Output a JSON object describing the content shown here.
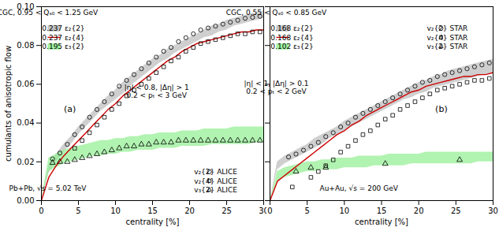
{
  "chart_data": [
    {
      "type": "line",
      "xlabel": "centrality [%]",
      "ylabel": "cumulants of anisotropic flow",
      "xlim": [
        0,
        30
      ],
      "ylim": [
        0.0,
        0.1
      ],
      "xticks": [
        0,
        5,
        10,
        15,
        20,
        25,
        30
      ],
      "yticks": [
        {
          "value": 0.0,
          "label": "0.00"
        },
        0.02,
        0.04,
        0.06,
        0.08,
        {
          "value": 0.1,
          "label": "0.10"
        }
      ],
      "legend": "lower right",
      "annotations": [
        "CGC, 0.95 < Qₛ₀ < 1.25 GeV",
        "|η| < 0.8, |Δη| > 1\n0.2 < pₜ < 3 GeV",
        "Pb+Pb, √s = 5.02 TeV",
        "(a)"
      ],
      "series": [
        {
          "name": "0.237 ε₂{2}",
          "type": "area",
          "color": "#bbbbbb",
          "x": [
            0,
            1,
            2,
            3,
            4,
            5,
            6,
            7,
            8,
            9,
            10,
            11,
            12,
            13,
            14,
            15,
            16,
            17,
            18,
            19,
            20,
            21,
            22,
            23,
            24,
            25,
            26,
            27,
            28,
            29,
            30
          ],
          "lower": [
            0,
            0.014,
            0.02,
            0.025,
            0.029,
            0.034,
            0.038,
            0.042,
            0.046,
            0.049,
            0.052,
            0.055,
            0.059,
            0.062,
            0.065,
            0.068,
            0.071,
            0.073,
            0.076,
            0.078,
            0.08,
            0.082,
            0.084,
            0.085,
            0.087,
            0.088,
            0.09,
            0.091,
            0.092,
            0.093,
            0.094
          ],
          "upper": [
            0,
            0.018,
            0.024,
            0.029,
            0.033,
            0.038,
            0.042,
            0.046,
            0.05,
            0.054,
            0.057,
            0.061,
            0.064,
            0.067,
            0.07,
            0.073,
            0.075,
            0.078,
            0.08,
            0.082,
            0.084,
            0.086,
            0.088,
            0.09,
            0.091,
            0.093,
            0.094,
            0.095,
            0.096,
            0.097,
            0.098
          ]
        },
        {
          "name": "0.237 ε₂{4}",
          "type": "line",
          "color": "#cc0000",
          "x": [
            0,
            1,
            2,
            3,
            4,
            5,
            6,
            7,
            8,
            9,
            10,
            11,
            12,
            13,
            14,
            15,
            16,
            17,
            18,
            19,
            20,
            21,
            22,
            23,
            24,
            25,
            26,
            27,
            28,
            29,
            30
          ],
          "values": [
            0,
            0.012,
            0.018,
            0.023,
            0.027,
            0.031,
            0.035,
            0.039,
            0.043,
            0.047,
            0.05,
            0.054,
            0.057,
            0.06,
            0.063,
            0.066,
            0.069,
            0.072,
            0.074,
            0.077,
            0.079,
            0.081,
            0.082,
            0.083,
            0.084,
            0.085,
            0.086,
            0.087,
            0.087,
            0.088,
            0.088
          ]
        },
        {
          "name": "0.195 ε₃{2}",
          "type": "area",
          "color": "#90ee90",
          "x": [
            0,
            1,
            2,
            3,
            4,
            5,
            6,
            7,
            8,
            9,
            10,
            11,
            12,
            13,
            14,
            15,
            16,
            17,
            18,
            19,
            20,
            21,
            22,
            23,
            24,
            25,
            26,
            27,
            28,
            29,
            30
          ],
          "lower": [
            0,
            0.015,
            0.017,
            0.019,
            0.02,
            0.021,
            0.022,
            0.023,
            0.023,
            0.024,
            0.024,
            0.025,
            0.025,
            0.026,
            0.026,
            0.026,
            0.027,
            0.027,
            0.027,
            0.028,
            0.028,
            0.028,
            0.028,
            0.029,
            0.029,
            0.029,
            0.029,
            0.029,
            0.029,
            0.03,
            0.03
          ],
          "upper": [
            0,
            0.022,
            0.024,
            0.026,
            0.027,
            0.028,
            0.029,
            0.03,
            0.031,
            0.031,
            0.032,
            0.032,
            0.033,
            0.033,
            0.034,
            0.034,
            0.035,
            0.035,
            0.035,
            0.036,
            0.036,
            0.036,
            0.037,
            0.037,
            0.037,
            0.037,
            0.038,
            0.038,
            0.038,
            0.038,
            0.038
          ]
        },
        {
          "name": "v₂{2} ALICE",
          "type": "scatter",
          "marker": "circle",
          "color": "black",
          "x": [
            1.5,
            2.5,
            3.5,
            4.5,
            5.5,
            6.5,
            7.5,
            8.5,
            9.5,
            10.5,
            11.5,
            12.5,
            13.5,
            14.5,
            15.5,
            16.5,
            17.5,
            18.5,
            19.5,
            20.5,
            21.5,
            22.5,
            23.5,
            24.5,
            25.5,
            26.5,
            27.5,
            28.5,
            29.5
          ],
          "values": [
            0.0215,
            0.0245,
            0.029,
            0.034,
            0.038,
            0.043,
            0.047,
            0.051,
            0.055,
            0.059,
            0.062,
            0.065,
            0.068,
            0.071,
            0.074,
            0.077,
            0.079,
            0.082,
            0.084,
            0.086,
            0.088,
            0.089,
            0.09,
            0.091,
            0.092,
            0.093,
            0.094,
            0.0945,
            0.095
          ]
        },
        {
          "name": "v₂{4} ALICE",
          "type": "scatter",
          "marker": "square",
          "color": "black",
          "x": [
            4.5,
            5.5,
            6.5,
            7.5,
            8.5,
            9.5,
            10.5,
            11.5,
            12.5,
            13.5,
            14.5,
            15.5,
            16.5,
            17.5,
            18.5,
            19.5,
            20.5,
            21.5,
            22.5,
            23.5,
            24.5,
            25.5,
            26.5,
            27.5,
            28.5,
            29.5
          ],
          "values": [
            0.027,
            0.031,
            0.035,
            0.039,
            0.043,
            0.047,
            0.05,
            0.054,
            0.057,
            0.06,
            0.063,
            0.066,
            0.069,
            0.072,
            0.074,
            0.077,
            0.079,
            0.081,
            0.082,
            0.083,
            0.084,
            0.085,
            0.086,
            0.086,
            0.087,
            0.087
          ]
        },
        {
          "name": "v₃{2} ALICE",
          "type": "scatter",
          "marker": "triangle",
          "color": "black",
          "x": [
            1.5,
            2.5,
            3.5,
            4.5,
            5.5,
            6.5,
            7.5,
            8.5,
            9.5,
            10.5,
            11.5,
            12.5,
            13.5,
            14.5,
            15.5,
            16.5,
            17.5,
            18.5,
            19.5,
            20.5,
            21.5,
            22.5,
            23.5,
            24.5,
            25.5,
            26.5,
            27.5,
            28.5,
            29.5
          ],
          "values": [
            0.0195,
            0.02,
            0.02,
            0.021,
            0.022,
            0.023,
            0.024,
            0.025,
            0.026,
            0.027,
            0.028,
            0.028,
            0.029,
            0.029,
            0.03,
            0.03,
            0.03,
            0.031,
            0.031,
            0.031,
            0.031,
            0.031,
            0.031,
            0.031,
            0.031,
            0.031,
            0.031,
            0.031,
            0.031
          ]
        }
      ]
    },
    {
      "type": "line",
      "xlabel": "centrality [%]",
      "xlim": [
        0,
        30
      ],
      "ylim": [
        0.0,
        0.1
      ],
      "xticks": [
        0,
        5,
        10,
        15,
        20,
        25,
        30
      ],
      "yticks": [
        {
          "value": 0.0,
          "label": "0.00"
        },
        0.02,
        0.04,
        0.06,
        0.08,
        {
          "value": 0.1,
          "label": "0.10"
        }
      ],
      "tick_labels": "x",
      "legend": "upper right",
      "annotations": [
        "CGC, 0.55 < Qₛ₀ < 0.85 GeV",
        "|η| < 1, |Δη| > 0.1\n0.2 < pₜ < 2 GeV",
        "Au+Au, √s = 200 GeV",
        "(b)"
      ],
      "series": [
        {
          "name": "0.168 ε₂{2}",
          "type": "area",
          "color": "#bbbbbb",
          "x": [
            0,
            1,
            2,
            3,
            4,
            5,
            6,
            7,
            8,
            9,
            10,
            11,
            12,
            13,
            14,
            15,
            16,
            17,
            18,
            19,
            20,
            21,
            22,
            23,
            24,
            25,
            26,
            27,
            28,
            29,
            30
          ],
          "lower": [
            0,
            0.016,
            0.019,
            0.021,
            0.023,
            0.025,
            0.027,
            0.029,
            0.032,
            0.034,
            0.036,
            0.038,
            0.04,
            0.042,
            0.044,
            0.046,
            0.048,
            0.05,
            0.052,
            0.053,
            0.055,
            0.056,
            0.058,
            0.059,
            0.06,
            0.061,
            0.062,
            0.063,
            0.064,
            0.065,
            0.066
          ],
          "upper": [
            0,
            0.02,
            0.023,
            0.025,
            0.027,
            0.029,
            0.032,
            0.034,
            0.036,
            0.038,
            0.041,
            0.043,
            0.045,
            0.047,
            0.049,
            0.051,
            0.053,
            0.055,
            0.057,
            0.059,
            0.061,
            0.062,
            0.064,
            0.065,
            0.067,
            0.068,
            0.069,
            0.07,
            0.071,
            0.072,
            0.073
          ]
        },
        {
          "name": "0.168 ε₂{4}",
          "type": "line",
          "color": "#cc0000",
          "x": [
            0,
            1,
            2,
            3,
            4,
            5,
            6,
            7,
            8,
            9,
            10,
            11,
            12,
            13,
            14,
            15,
            16,
            17,
            18,
            19,
            20,
            21,
            22,
            23,
            24,
            25,
            26,
            27,
            28,
            29,
            30
          ],
          "values": [
            0,
            0.01,
            0.013,
            0.016,
            0.019,
            0.022,
            0.025,
            0.028,
            0.031,
            0.034,
            0.036,
            0.039,
            0.041,
            0.044,
            0.046,
            0.048,
            0.05,
            0.052,
            0.054,
            0.056,
            0.057,
            0.059,
            0.06,
            0.061,
            0.062,
            0.063,
            0.064,
            0.064,
            0.065,
            0.065,
            0.066
          ]
        },
        {
          "name": "0.102 ε₃{2}",
          "type": "area",
          "color": "#90ee90",
          "x": [
            0,
            1,
            2,
            3,
            4,
            5,
            6,
            7,
            8,
            9,
            10,
            11,
            12,
            13,
            14,
            15,
            16,
            17,
            18,
            19,
            20,
            21,
            22,
            23,
            24,
            25,
            26,
            27,
            28,
            29,
            30
          ],
          "lower": [
            0,
            0.01,
            0.012,
            0.013,
            0.014,
            0.015,
            0.015,
            0.016,
            0.016,
            0.016,
            0.017,
            0.017,
            0.017,
            0.017,
            0.018,
            0.018,
            0.018,
            0.018,
            0.018,
            0.019,
            0.019,
            0.019,
            0.019,
            0.019,
            0.019,
            0.019,
            0.019,
            0.019,
            0.02,
            0.02,
            0.02
          ],
          "upper": [
            0,
            0.015,
            0.017,
            0.018,
            0.019,
            0.02,
            0.02,
            0.021,
            0.021,
            0.022,
            0.022,
            0.022,
            0.023,
            0.023,
            0.023,
            0.023,
            0.024,
            0.024,
            0.024,
            0.024,
            0.024,
            0.025,
            0.025,
            0.025,
            0.025,
            0.025,
            0.025,
            0.025,
            0.025,
            0.025,
            0.025
          ]
        },
        {
          "name": "v₂{2} STAR",
          "type": "scatter",
          "marker": "circle",
          "color": "black",
          "x": [
            2.5,
            3.5,
            4.5,
            5.5,
            6.5,
            7.5,
            8.5,
            9.5,
            10.5,
            11.5,
            12.5,
            13.5,
            14.5,
            15.5,
            16.5,
            17.5,
            18.5,
            19.5,
            20.5,
            21.5,
            22.5,
            23.5,
            24.5,
            25.5,
            26.5,
            27.5,
            28.5,
            29.5
          ],
          "values": [
            0.0225,
            0.024,
            0.026,
            0.028,
            0.03,
            0.033,
            0.035,
            0.038,
            0.04,
            0.043,
            0.045,
            0.047,
            0.049,
            0.051,
            0.053,
            0.055,
            0.057,
            0.059,
            0.061,
            0.062,
            0.064,
            0.065,
            0.066,
            0.067,
            0.068,
            0.069,
            0.07,
            0.071
          ]
        },
        {
          "name": "v₂{4} STAR",
          "type": "scatter",
          "marker": "square",
          "color": "black",
          "x": [
            3.0,
            5.5,
            6.5,
            7.5,
            8.5,
            9.5,
            10.5,
            11.5,
            12.5,
            13.5,
            14.5,
            15.5,
            16.5,
            17.5,
            18.5,
            19.5,
            20.5,
            21.5,
            22.5,
            23.5,
            24.5,
            25.5,
            26.5,
            27.5,
            28.5,
            29.5
          ],
          "values": [
            0.007,
            0.012,
            0.015,
            0.018,
            0.021,
            0.025,
            0.028,
            0.031,
            0.034,
            0.036,
            0.039,
            0.042,
            0.044,
            0.047,
            0.049,
            0.051,
            0.053,
            0.055,
            0.057,
            0.058,
            0.059,
            0.06,
            0.061,
            0.062,
            0.062,
            0.063
          ]
        },
        {
          "name": "v₃{2} STAR",
          "type": "scatter",
          "marker": "triangle",
          "color": "black",
          "x": [
            3.5,
            5.5,
            7.5,
            15.5,
            25.5
          ],
          "values": [
            0.015,
            0.017,
            0.017,
            0.019,
            0.021
          ]
        }
      ]
    }
  ]
}
